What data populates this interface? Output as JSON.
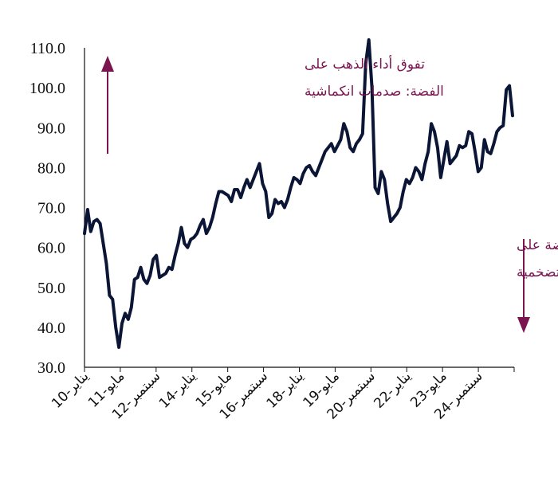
{
  "chart_data": {
    "type": "line",
    "title": "",
    "xlabel": "",
    "ylabel": "",
    "ylim": [
      30,
      110
    ],
    "y_ticks": [
      "30.0",
      "40.0",
      "50.0",
      "60.0",
      "70.0",
      "80.0",
      "90.0",
      "100.0",
      "110.0"
    ],
    "x_tick_labels": [
      "يناير-10",
      "مايو-11",
      "سبتمبر-12",
      "يناير-14",
      "مايو-15",
      "سبتمبر-16",
      "يناير-18",
      "مايو-19",
      "سبتمبر-20",
      "يناير-22",
      "مايو-23",
      "سبتمبر-24"
    ],
    "grid": false,
    "legend": "none",
    "series": [
      {
        "values": [
          63.5,
          69.5,
          64,
          66.5,
          67,
          66,
          61,
          56,
          48,
          47,
          40,
          35,
          41,
          43.5,
          42,
          45,
          52,
          52.5,
          55,
          52,
          51,
          53,
          57,
          58,
          52.5,
          53,
          53.5,
          55,
          54.5,
          58,
          61,
          65,
          61,
          60,
          62,
          62.5,
          63.5,
          65.5,
          67,
          63.5,
          65,
          67.5,
          71,
          74,
          74,
          73.5,
          73,
          71.5,
          74.5,
          74.5,
          72.5,
          75,
          77,
          75,
          77,
          79,
          81,
          76,
          74,
          67.5,
          68.5,
          72,
          71,
          71.5,
          70,
          72,
          75,
          77.5,
          77,
          76,
          78.5,
          80,
          80.5,
          79,
          78,
          80,
          82,
          84,
          85,
          86,
          84,
          85.5,
          87,
          91,
          89,
          85,
          84,
          86,
          87,
          88.5,
          106,
          112,
          100,
          75,
          73.5,
          79,
          77,
          71,
          66.5,
          67.5,
          68.5,
          70,
          74,
          77,
          76,
          77.5,
          80,
          79,
          77,
          81,
          84,
          91,
          89,
          85,
          77.5,
          82,
          86.5,
          81,
          82,
          83,
          85.5,
          85,
          85.5,
          89,
          88.5,
          84,
          79,
          80,
          87,
          84,
          83.5,
          86,
          89,
          90,
          90.5,
          99.5,
          100.5,
          93
        ]
      }
    ],
    "annotations": [
      {
        "line1": "تفوق أداء الذهب على",
        "line2": "الفضة: صدمات انكماشية",
        "direction": "up"
      },
      {
        "line1": "تفوق أداء الفضة على",
        "line2": "الذهب: صدمات تضخمية",
        "direction": "down"
      }
    ],
    "colors": {
      "line": "#0b1535",
      "annotation": "#7a1550",
      "axis": "#111111"
    }
  }
}
